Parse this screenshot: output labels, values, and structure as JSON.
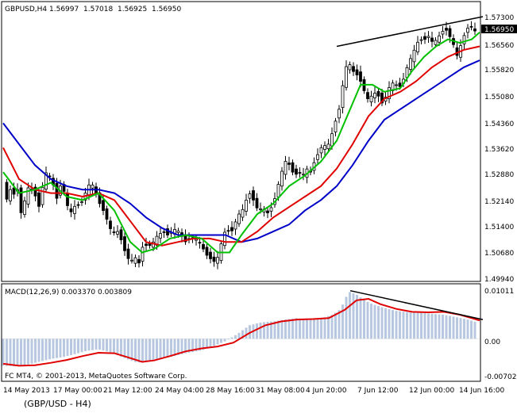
{
  "header": {
    "symbol_tf": "GBPUSD,H4",
    "open": "1.56997",
    "high": "1.57018",
    "low": "1.56925",
    "close": "1.56950"
  },
  "macd_header": "MACD(12,26,9) 0.003370 0.003809",
  "copyright": "FC MT4, © 2001-2013, MetaQuotes Software Corp.",
  "caption": "(GBP/USD - H4)",
  "price_axis": {
    "labels": [
      "1.57300",
      "1.56950",
      "1.56560",
      "1.55820",
      "1.55080",
      "1.54360",
      "1.53620",
      "1.52880",
      "1.52140",
      "1.51400",
      "1.50680",
      "1.49940"
    ],
    "current_price": "1.56950"
  },
  "macd_axis": {
    "labels": [
      "0.01011",
      "0.00",
      "-0.007022"
    ]
  },
  "time_axis": {
    "labels": [
      "14 May 2013",
      "17 May 00:00",
      "21 May 12:00",
      "24 May 04:00",
      "28 May 16:00",
      "31 May 08:00",
      "4 Jun 20:00",
      "7 Jun 12:00",
      "12 Jun 00:00",
      "14 Jun 16:00"
    ]
  },
  "colors": {
    "candle": "#000000",
    "ma_fast": "#00c000",
    "ma_mid": "#e00000",
    "ma_slow": "#0000c8",
    "histogram": "#b8c8e0",
    "signal": "#e00000",
    "trendline": "#000000"
  },
  "chart_data": {
    "type": "candlestick",
    "price_range": [
      1.4994,
      1.5745
    ],
    "macd_range": [
      -0.007022,
      0.01011
    ],
    "close_path": [
      [
        0,
        1.528
      ],
      [
        4,
        1.522
      ],
      [
        8,
        1.524
      ],
      [
        11,
        1.527
      ],
      [
        14,
        1.523
      ],
      [
        18,
        1.525
      ],
      [
        22,
        1.518
      ],
      [
        26,
        1.521
      ],
      [
        30,
        1.524
      ],
      [
        33,
        1.527
      ],
      [
        38,
        1.524
      ],
      [
        41,
        1.523
      ],
      [
        44,
        1.519
      ],
      [
        49,
        1.525
      ],
      [
        53,
        1.53
      ],
      [
        58,
        1.529
      ],
      [
        62,
        1.527
      ],
      [
        65,
        1.525
      ],
      [
        68,
        1.522
      ],
      [
        72,
        1.526
      ],
      [
        78,
        1.524
      ],
      [
        83,
        1.518
      ],
      [
        87,
        1.519
      ],
      [
        92,
        1.521
      ],
      [
        97,
        1.52
      ],
      [
        101,
        1.523
      ],
      [
        106,
        1.525
      ],
      [
        109,
        1.527
      ],
      [
        114,
        1.526
      ],
      [
        119,
        1.522
      ],
      [
        124,
        1.52
      ],
      [
        128,
        1.518
      ],
      [
        133,
        1.515
      ],
      [
        138,
        1.512
      ],
      [
        142,
        1.514
      ],
      [
        148,
        1.511
      ],
      [
        152,
        1.508
      ],
      [
        156,
        1.506
      ],
      [
        160,
        1.504
      ],
      [
        165,
        1.506
      ],
      [
        171,
        1.504
      ],
      [
        176,
        1.509
      ],
      [
        181,
        1.509
      ],
      [
        187,
        1.509
      ],
      [
        191,
        1.511
      ],
      [
        195,
        1.512
      ],
      [
        202,
        1.513
      ],
      [
        207,
        1.512
      ],
      [
        213,
        1.513
      ],
      [
        218,
        1.514
      ],
      [
        224,
        1.512
      ],
      [
        229,
        1.51
      ],
      [
        236,
        1.511
      ],
      [
        242,
        1.511
      ],
      [
        247,
        1.51
      ],
      [
        252,
        1.508
      ],
      [
        257,
        1.506
      ],
      [
        262,
        1.505
      ],
      [
        268,
        1.504
      ],
      [
        273,
        1.508
      ],
      [
        277,
        1.512
      ],
      [
        282,
        1.514
      ],
      [
        286,
        1.512
      ],
      [
        291,
        1.515
      ],
      [
        297,
        1.518
      ],
      [
        301,
        1.519
      ],
      [
        306,
        1.522
      ],
      [
        311,
        1.524
      ],
      [
        315,
        1.522
      ],
      [
        321,
        1.519
      ],
      [
        327,
        1.52
      ],
      [
        332,
        1.518
      ],
      [
        338,
        1.52
      ],
      [
        343,
        1.523
      ],
      [
        348,
        1.528
      ],
      [
        352,
        1.531
      ],
      [
        357,
        1.534
      ],
      [
        362,
        1.531
      ],
      [
        367,
        1.529
      ],
      [
        372,
        1.53
      ],
      [
        377,
        1.529
      ],
      [
        382,
        1.531
      ],
      [
        387,
        1.53
      ],
      [
        392,
        1.533
      ],
      [
        398,
        1.536
      ],
      [
        403,
        1.538
      ],
      [
        408,
        1.537
      ],
      [
        414,
        1.541
      ],
      [
        419,
        1.545
      ],
      [
        423,
        1.548
      ],
      [
        427,
        1.554
      ],
      [
        431,
        1.56
      ],
      [
        436,
        1.561
      ],
      [
        440,
        1.559
      ],
      [
        445,
        1.558
      ],
      [
        450,
        1.556
      ],
      [
        455,
        1.553
      ],
      [
        459,
        1.551
      ],
      [
        465,
        1.552
      ],
      [
        470,
        1.553
      ],
      [
        474,
        1.551
      ],
      [
        479,
        1.549
      ],
      [
        483,
        1.553
      ],
      [
        488,
        1.555
      ],
      [
        493,
        1.556
      ],
      [
        497,
        1.554
      ],
      [
        502,
        1.555
      ],
      [
        507,
        1.559
      ],
      [
        512,
        1.562
      ],
      [
        516,
        1.564
      ],
      [
        521,
        1.567
      ],
      [
        527,
        1.568
      ],
      [
        532,
        1.568
      ],
      [
        536,
        1.569
      ],
      [
        541,
        1.567
      ],
      [
        546,
        1.568
      ],
      [
        552,
        1.57
      ],
      [
        557,
        1.571
      ],
      [
        562,
        1.569
      ],
      [
        568,
        1.566
      ],
      [
        572,
        1.563
      ],
      [
        577,
        1.567
      ],
      [
        582,
        1.57
      ],
      [
        587,
        1.572
      ],
      [
        592,
        1.571
      ],
      [
        597,
        1.5695
      ]
    ],
    "ma_fast": [
      [
        0,
        1.53
      ],
      [
        20,
        1.524
      ],
      [
        40,
        1.525
      ],
      [
        60,
        1.527
      ],
      [
        80,
        1.523
      ],
      [
        100,
        1.522
      ],
      [
        120,
        1.524
      ],
      [
        140,
        1.519
      ],
      [
        160,
        1.51
      ],
      [
        175,
        1.507
      ],
      [
        190,
        1.508
      ],
      [
        210,
        1.511
      ],
      [
        230,
        1.512
      ],
      [
        250,
        1.511
      ],
      [
        270,
        1.507
      ],
      [
        285,
        1.507
      ],
      [
        300,
        1.512
      ],
      [
        320,
        1.518
      ],
      [
        340,
        1.521
      ],
      [
        360,
        1.526
      ],
      [
        380,
        1.529
      ],
      [
        400,
        1.533
      ],
      [
        420,
        1.539
      ],
      [
        435,
        1.547
      ],
      [
        450,
        1.555
      ],
      [
        465,
        1.555
      ],
      [
        480,
        1.553
      ],
      [
        500,
        1.554
      ],
      [
        515,
        1.559
      ],
      [
        530,
        1.563
      ],
      [
        545,
        1.566
      ],
      [
        560,
        1.568
      ],
      [
        575,
        1.567
      ],
      [
        590,
        1.568
      ],
      [
        600,
        1.57
      ]
    ],
    "ma_mid": [
      [
        0,
        1.537
      ],
      [
        20,
        1.528
      ],
      [
        40,
        1.525
      ],
      [
        60,
        1.524
      ],
      [
        80,
        1.524
      ],
      [
        100,
        1.523
      ],
      [
        120,
        1.524
      ],
      [
        140,
        1.522
      ],
      [
        160,
        1.516
      ],
      [
        180,
        1.51
      ],
      [
        200,
        1.509
      ],
      [
        220,
        1.51
      ],
      [
        240,
        1.511
      ],
      [
        260,
        1.511
      ],
      [
        280,
        1.51
      ],
      [
        300,
        1.51
      ],
      [
        320,
        1.513
      ],
      [
        340,
        1.517
      ],
      [
        360,
        1.52
      ],
      [
        380,
        1.523
      ],
      [
        400,
        1.526
      ],
      [
        420,
        1.531
      ],
      [
        440,
        1.538
      ],
      [
        460,
        1.546
      ],
      [
        480,
        1.551
      ],
      [
        500,
        1.553
      ],
      [
        520,
        1.556
      ],
      [
        540,
        1.56
      ],
      [
        560,
        1.563
      ],
      [
        580,
        1.565
      ],
      [
        600,
        1.566
      ]
    ],
    "ma_slow": [
      [
        0,
        1.544
      ],
      [
        20,
        1.538
      ],
      [
        40,
        1.532
      ],
      [
        60,
        1.528
      ],
      [
        80,
        1.526
      ],
      [
        100,
        1.525
      ],
      [
        120,
        1.525
      ],
      [
        140,
        1.524
      ],
      [
        160,
        1.521
      ],
      [
        180,
        1.517
      ],
      [
        200,
        1.514
      ],
      [
        220,
        1.512
      ],
      [
        240,
        1.512
      ],
      [
        260,
        1.512
      ],
      [
        280,
        1.512
      ],
      [
        300,
        1.51
      ],
      [
        320,
        1.511
      ],
      [
        340,
        1.513
      ],
      [
        360,
        1.515
      ],
      [
        380,
        1.519
      ],
      [
        400,
        1.522
      ],
      [
        420,
        1.526
      ],
      [
        440,
        1.532
      ],
      [
        460,
        1.539
      ],
      [
        480,
        1.545
      ],
      [
        500,
        1.548
      ],
      [
        520,
        1.551
      ],
      [
        540,
        1.554
      ],
      [
        560,
        1.557
      ],
      [
        580,
        1.56
      ],
      [
        600,
        1.562
      ]
    ],
    "macd_hist": [
      [
        0,
        -0.0056
      ],
      [
        15,
        -0.0057
      ],
      [
        30,
        -0.0054
      ],
      [
        45,
        -0.0048
      ],
      [
        60,
        -0.0042
      ],
      [
        75,
        -0.0038
      ],
      [
        90,
        -0.0032
      ],
      [
        105,
        -0.0025
      ],
      [
        120,
        -0.0022
      ],
      [
        135,
        -0.0028
      ],
      [
        150,
        -0.0038
      ],
      [
        165,
        -0.0048
      ],
      [
        175,
        -0.005
      ],
      [
        190,
        -0.0044
      ],
      [
        210,
        -0.0038
      ],
      [
        230,
        -0.003
      ],
      [
        250,
        -0.0024
      ],
      [
        265,
        -0.0015
      ],
      [
        280,
        -0.0005
      ],
      [
        295,
        0.001
      ],
      [
        310,
        0.0028
      ],
      [
        325,
        0.0034
      ],
      [
        340,
        0.0036
      ],
      [
        355,
        0.004
      ],
      [
        370,
        0.0043
      ],
      [
        385,
        0.004
      ],
      [
        400,
        0.0042
      ],
      [
        415,
        0.005
      ],
      [
        425,
        0.0062
      ],
      [
        435,
        0.0098
      ],
      [
        445,
        0.0092
      ],
      [
        455,
        0.008
      ],
      [
        465,
        0.0072
      ],
      [
        480,
        0.0064
      ],
      [
        495,
        0.0058
      ],
      [
        510,
        0.0055
      ],
      [
        525,
        0.0054
      ],
      [
        540,
        0.0052
      ],
      [
        555,
        0.005
      ],
      [
        570,
        0.0045
      ],
      [
        585,
        0.004
      ],
      [
        597,
        0.0034
      ]
    ],
    "macd_signal": [
      [
        0,
        -0.0052
      ],
      [
        20,
        -0.0056
      ],
      [
        40,
        -0.0055
      ],
      [
        60,
        -0.005
      ],
      [
        80,
        -0.0044
      ],
      [
        100,
        -0.0036
      ],
      [
        120,
        -0.0029
      ],
      [
        140,
        -0.003
      ],
      [
        160,
        -0.004
      ],
      [
        175,
        -0.0048
      ],
      [
        190,
        -0.0045
      ],
      [
        210,
        -0.0036
      ],
      [
        230,
        -0.0026
      ],
      [
        250,
        -0.002
      ],
      [
        270,
        -0.0016
      ],
      [
        290,
        -0.0008
      ],
      [
        310,
        0.0012
      ],
      [
        330,
        0.0028
      ],
      [
        350,
        0.0036
      ],
      [
        370,
        0.004
      ],
      [
        390,
        0.0041
      ],
      [
        410,
        0.0043
      ],
      [
        430,
        0.006
      ],
      [
        445,
        0.008
      ],
      [
        460,
        0.0083
      ],
      [
        475,
        0.0072
      ],
      [
        495,
        0.0062
      ],
      [
        515,
        0.0056
      ],
      [
        535,
        0.0055
      ],
      [
        555,
        0.0056
      ],
      [
        575,
        0.005
      ],
      [
        590,
        0.0043
      ],
      [
        600,
        0.0038
      ]
    ],
    "price_trendline": [
      [
        420,
        1.566
      ],
      [
        604,
        1.5745
      ]
    ],
    "macd_trendline": [
      [
        437,
        0.01
      ],
      [
        604,
        0.004
      ]
    ]
  }
}
